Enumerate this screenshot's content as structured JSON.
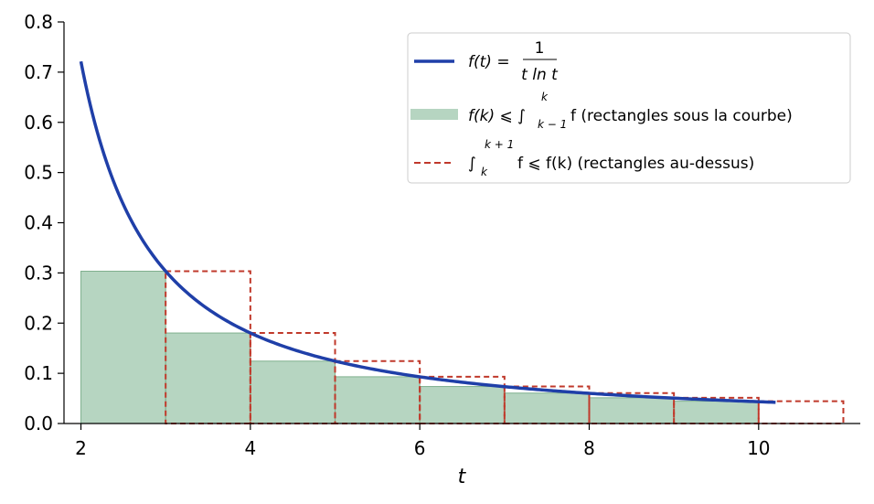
{
  "chart_data": {
    "type": "line",
    "title": "",
    "xlabel": "t",
    "ylabel": "",
    "xlim": [
      1.8,
      11.2
    ],
    "ylim": [
      0.0,
      0.8
    ],
    "xticks": [
      2,
      4,
      6,
      8,
      10
    ],
    "xtick_labels": [
      "2",
      "4",
      "6",
      "8",
      "10"
    ],
    "yticks": [
      0.0,
      0.1,
      0.2,
      0.3,
      0.4,
      0.5,
      0.6,
      0.7,
      0.8
    ],
    "ytick_labels": [
      "0.0",
      "0.1",
      "0.2",
      "0.3",
      "0.4",
      "0.5",
      "0.6",
      "0.7",
      "0.8"
    ],
    "grid": false,
    "legend_position": "top-right",
    "curve": {
      "t_start": 2.0,
      "t_end": 10.2,
      "color": "#1f3fa8"
    },
    "lower_rectangles": {
      "color": "#8fbf9f",
      "edges": [
        2,
        3,
        4,
        5,
        6,
        7,
        8,
        9,
        10
      ],
      "heights": [
        0.3034,
        0.1803,
        0.1243,
        0.0931,
        0.0737,
        0.0606,
        0.0513,
        0.0444
      ]
    },
    "upper_rectangles": {
      "color": "#c0392b",
      "edges": [
        3,
        4,
        5,
        6,
        7,
        8,
        9,
        10,
        11
      ],
      "heights": [
        0.3034,
        0.1803,
        0.1243,
        0.0931,
        0.0737,
        0.0606,
        0.0513,
        0.0444
      ]
    },
    "legend": [
      {
        "key": "curve",
        "prefix": "f(t) = ",
        "fraction_num": "1",
        "fraction_den": "t ln t"
      },
      {
        "key": "lower",
        "main": "f(k) ⩽ ∫",
        "sub": "k − 1",
        "sup": "k",
        "after": "f (rectangles sous la courbe)"
      },
      {
        "key": "upper",
        "main": "∫",
        "sub": "k",
        "sup": "k + 1",
        "after": "f ⩽ f(k) (rectangles au-dessus)"
      }
    ]
  }
}
